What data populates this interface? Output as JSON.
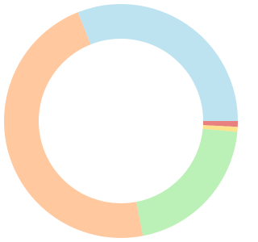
{
  "chart_data": {
    "type": "donut",
    "values": [
      0.8,
      0.7,
      20.5,
      47,
      31
    ],
    "colors": [
      "#e88080",
      "#fde28e",
      "#bbf0b6",
      "#ffc89e",
      "#bee3f0"
    ]
  }
}
